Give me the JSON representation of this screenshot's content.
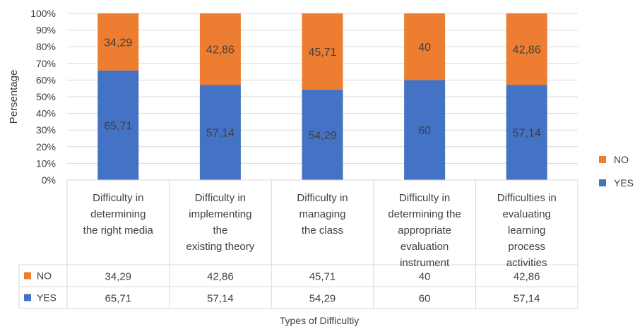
{
  "chart_data": {
    "type": "bar",
    "stacked": "percent",
    "title": "",
    "ylabel": "Persentage",
    "xlabel": "Types of Difficultiy",
    "ylim": [
      0,
      100
    ],
    "y_ticks": [
      "0%",
      "10%",
      "20%",
      "30%",
      "40%",
      "50%",
      "60%",
      "70%",
      "80%",
      "90%",
      "100%"
    ],
    "categories": [
      [
        "Difficulty in",
        "determining",
        "the right media"
      ],
      [
        "Difficulty in",
        "implementing",
        "the",
        "existing theory"
      ],
      [
        "Difficulty in",
        "managing",
        "the class"
      ],
      [
        "Difficulty in",
        "determining the",
        "appropriate",
        "evaluation",
        "instrument"
      ],
      [
        "Difficulties in",
        "evaluating",
        "learning",
        "process",
        "activities"
      ]
    ],
    "series": [
      {
        "name": "YES",
        "color": "#4472C4",
        "values": [
          65.71,
          57.14,
          54.29,
          60,
          57.14
        ],
        "labels": [
          "65,71",
          "57,14",
          "54,29",
          "60",
          "57,14"
        ]
      },
      {
        "name": "NO",
        "color": "#ED7D31",
        "values": [
          34.29,
          42.86,
          45.71,
          40,
          42.86
        ],
        "labels": [
          "34,29",
          "42,86",
          "45,71",
          "40",
          "42,86"
        ]
      }
    ],
    "legend": {
      "position": "right",
      "order": [
        "NO",
        "YES"
      ]
    },
    "data_table": true,
    "grid": true
  }
}
